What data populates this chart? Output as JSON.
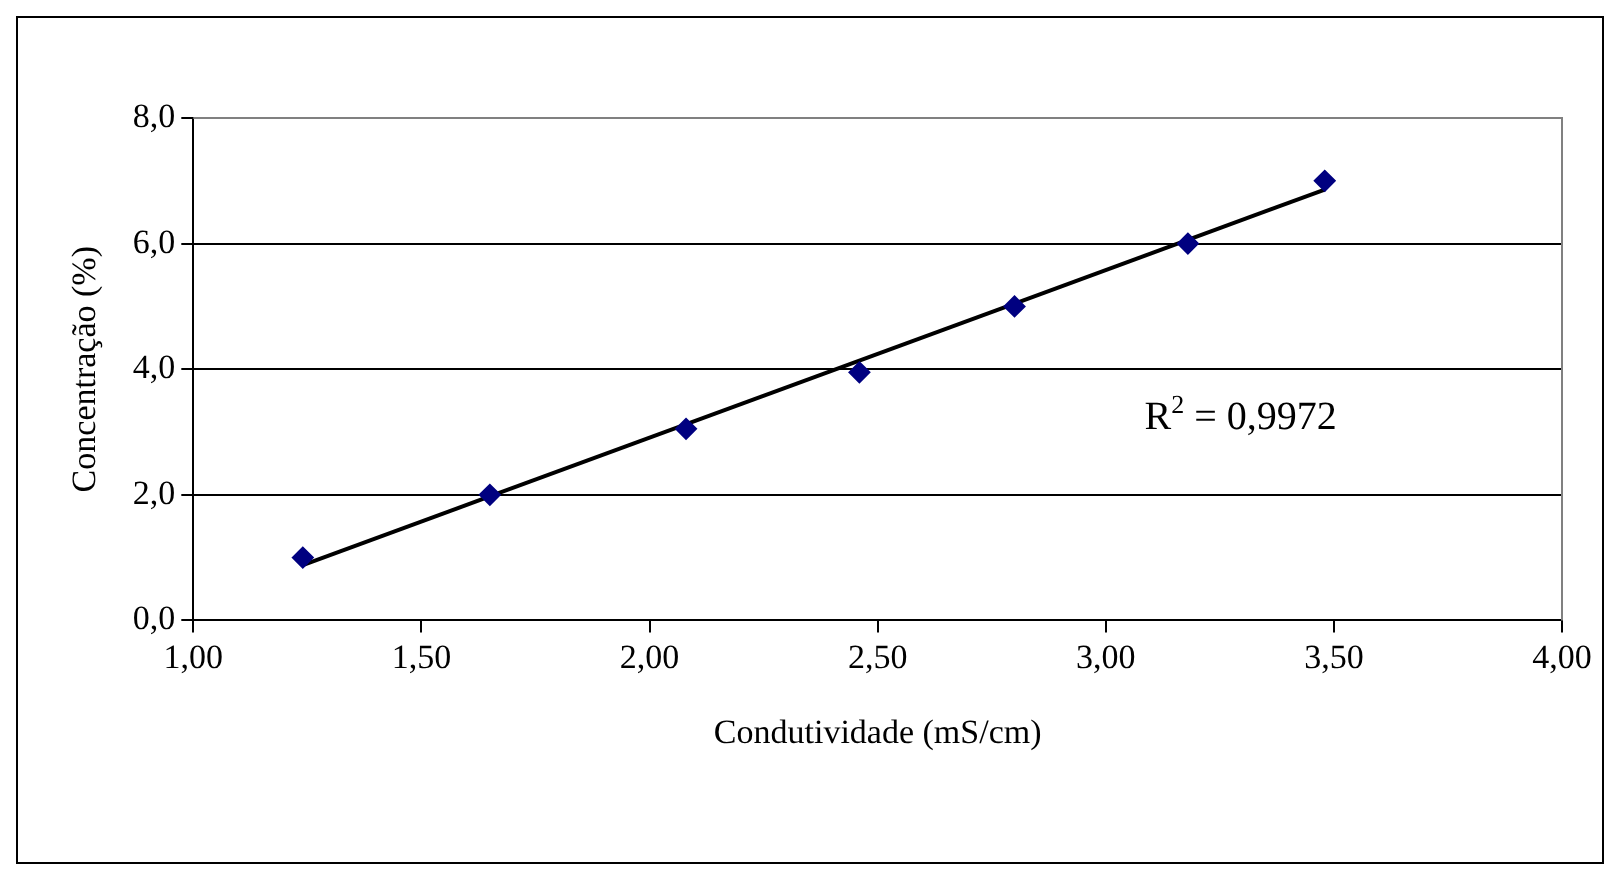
{
  "chart_data": {
    "type": "scatter",
    "xlabel": "Condutividade (mS/cm)",
    "ylabel": "Concentração (%)",
    "x": [
      1.24,
      1.65,
      2.08,
      2.46,
      2.8,
      3.18,
      3.48
    ],
    "series": [
      {
        "color": "#000080",
        "values": [
          1.0,
          2.0,
          3.05,
          3.95,
          5.0,
          6.0,
          7.0
        ],
        "marker": "diamond"
      },
      {
        "type": "line",
        "color": "#000000",
        "x": [
          1.24,
          3.48
        ],
        "values": [
          0.88,
          6.86
        ],
        "marker": "none"
      }
    ],
    "xlim": [
      1,
      4
    ],
    "xticks": [
      {
        "value": 1,
        "label": "1,00"
      },
      {
        "value": 1.5,
        "label": "1,50"
      },
      {
        "value": 2,
        "label": "2,00"
      },
      {
        "value": 2.5,
        "label": "2,50"
      },
      {
        "value": 3,
        "label": "3,00"
      },
      {
        "value": 3.5,
        "label": "3,50"
      },
      {
        "value": 4,
        "label": "4,00"
      }
    ],
    "ylim": [
      0,
      8
    ],
    "yticks": [
      {
        "value": 0,
        "label": "0,0"
      },
      {
        "value": 2,
        "label": "2,0"
      },
      {
        "value": 4,
        "label": "4,0"
      },
      {
        "value": 6,
        "label": "6,0"
      },
      {
        "value": 8,
        "label": "8,0"
      }
    ],
    "grid": "y",
    "legend": false,
    "annotations": [
      "R$^{2}$ = 0,9972"
    ]
  }
}
